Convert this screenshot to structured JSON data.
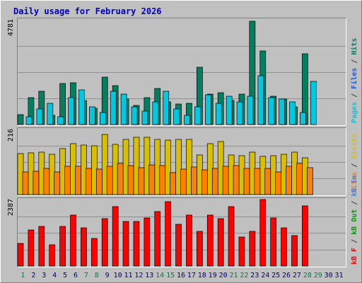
{
  "title": "Daily usage for February 2026",
  "panels": {
    "top": {
      "max_label": "4781",
      "right_labels": [
        {
          "text": "Pages",
          "color": "#00c8e0"
        },
        {
          "text": " / ",
          "color": "#404040"
        },
        {
          "text": "Files",
          "color": "#1060ff"
        },
        {
          "text": " / ",
          "color": "#404040"
        },
        {
          "text": "Hits",
          "color": "#008060"
        }
      ]
    },
    "mid": {
      "max_label": "216",
      "right_labels": [
        {
          "text": "Sites",
          "color": "#ff8000"
        },
        {
          "text": " / ",
          "color": "#404040"
        },
        {
          "text": "Visits",
          "color": "#d8c000"
        }
      ]
    },
    "bot": {
      "max_label": "2387",
      "right_labels": [
        {
          "text": "kB F",
          "color": "#ff0000"
        },
        {
          "text": " / ",
          "color": "#404040"
        },
        {
          "text": "kB Out",
          "color": "#00a000"
        },
        {
          "text": " / ",
          "color": "#404040"
        },
        {
          "text": "kB In",
          "color": "#4080ff"
        }
      ]
    }
  },
  "chart_data": {
    "type": "bar",
    "title": "Daily usage for February 2026",
    "categories": [
      "1",
      "2",
      "3",
      "4",
      "5",
      "6",
      "7",
      "8",
      "9",
      "10",
      "11",
      "12",
      "13",
      "14",
      "15",
      "16",
      "17",
      "18",
      "19",
      "20",
      "21",
      "22",
      "23",
      "24",
      "25",
      "26",
      "27",
      "28",
      "29",
      "30",
      "31"
    ],
    "category_colors": {
      "weekend": "#008040",
      "weekday": "#000080",
      "weekend_days": [
        "1",
        "7",
        "8",
        "14",
        "15",
        "21",
        "22",
        "28",
        "29"
      ]
    },
    "charts": [
      {
        "panel": "top",
        "ymax": 4781,
        "series": [
          {
            "name": "Hits",
            "color": "#008060",
            "values": [
              452,
              1233,
              1507,
              425,
              1883,
              1918,
              1096,
              747,
              2153,
              1781,
              1147,
              877,
              1233,
              1644,
              1027,
              925,
              959,
              2632,
              1404,
              1438,
              1096,
              1404,
              4726,
              3356,
              1301,
              1164,
              795,
              3219,
              0,
              0,
              0
            ]
          },
          {
            "name": "Files",
            "color": "#1060ff",
            "values": [
              0,
              0,
              0,
              0,
              0,
              0,
              0,
              0,
              0,
              0,
              0,
              0,
              0,
              0,
              0,
              0,
              0,
              0,
              0,
              0,
              0,
              0,
              0,
              0,
              0,
              0,
              0,
              0,
              0,
              0,
              0
            ]
          },
          {
            "name": "Pages",
            "color": "#00c8e0",
            "values": [
              342,
              719,
              959,
              342,
              1233,
              1575,
              822,
              548,
              1507,
              1404,
              822,
              616,
              1027,
              1507,
              719,
              411,
              822,
              1370,
              959,
              1301,
              1027,
              1301,
              2226,
              1233,
              1164,
              1027,
              548,
              1986,
              0,
              0,
              0
            ]
          }
        ]
      },
      {
        "panel": "mid",
        "ymax": 216,
        "series": [
          {
            "name": "Visits",
            "color": "#d8c000",
            "values": [
              136,
              138,
              141,
              133,
              152,
              168,
              164,
              162,
              200,
              167,
              182,
              190,
              189,
              183,
              180,
              182,
              184,
              131,
              168,
              176,
              132,
              129,
              140,
              127,
              128,
              133,
              140,
              123,
              0,
              0,
              0
            ]
          },
          {
            "name": "Sites",
            "color": "#ff8000",
            "values": [
              75,
              78,
              86,
              75,
              95,
              94,
              88,
              84,
              94,
              104,
              96,
              90,
              98,
              96,
              72,
              85,
              92,
              83,
              87,
              95,
              96,
              87,
              86,
              87,
              74,
              95,
              104,
              89,
              0,
              0,
              0
            ]
          }
        ]
      },
      {
        "panel": "bot",
        "ymax": 2387,
        "series": [
          {
            "name": "kB F",
            "color": "#ff0000",
            "values": [
              812,
              1297,
              1417,
              767,
              1417,
              1823,
              1367,
              990,
              1689,
              2121,
              1599,
              1611,
              1732,
              1955,
              2322,
              1498,
              1823,
              1251,
              1823,
              1689,
              2121,
              1046,
              1251,
              2387,
              1732,
              1367,
              1101,
              2153,
              0,
              0,
              0
            ]
          },
          {
            "name": "kB Out",
            "color": "#00a000",
            "values": [
              0,
              0,
              0,
              0,
              0,
              0,
              0,
              0,
              0,
              0,
              0,
              0,
              0,
              0,
              0,
              0,
              0,
              0,
              0,
              0,
              0,
              0,
              0,
              0,
              0,
              0,
              0,
              0,
              0,
              0,
              0
            ]
          },
          {
            "name": "kB In",
            "color": "#4080ff",
            "values": [
              0,
              0,
              0,
              0,
              0,
              0,
              0,
              0,
              0,
              0,
              0,
              0,
              0,
              0,
              0,
              0,
              0,
              0,
              0,
              0,
              0,
              0,
              0,
              0,
              0,
              0,
              0,
              0,
              0,
              0,
              0
            ]
          }
        ]
      }
    ],
    "colors": {
      "background": "#c0c0c0",
      "title": "#0000c0",
      "frame_light": "#ffffff",
      "frame_dark": "#808080",
      "grid": "#909090"
    }
  }
}
